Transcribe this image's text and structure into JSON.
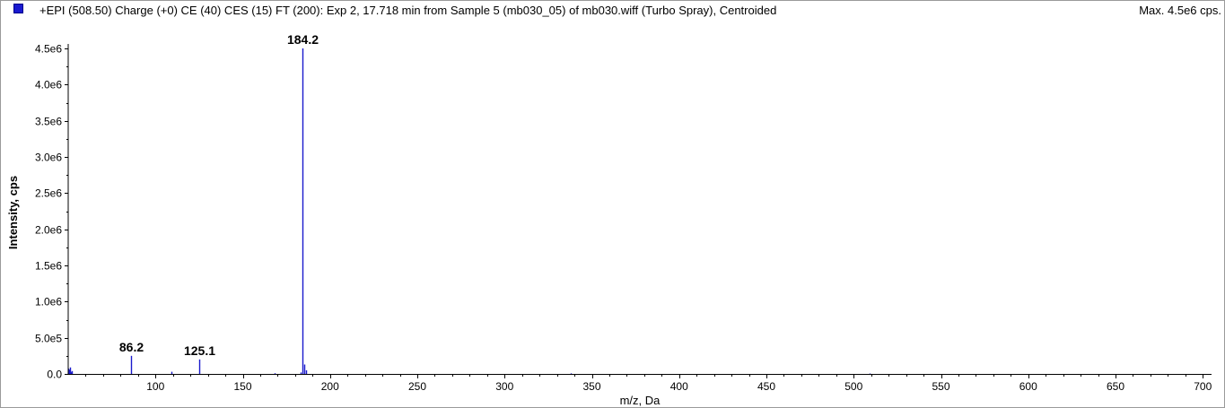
{
  "header": {
    "title": "+EPI (508.50) Charge (+0) CE (40) CES (15) FT (200): Exp 2, 17.718 min from Sample 5 (mb030_05) of mb030.wiff (Turbo Spray), Centroided",
    "max_label": "Max. 4.5e6 cps."
  },
  "colors": {
    "series": "#1a1acc",
    "axis": "#000000"
  },
  "chart_data": {
    "type": "bar",
    "subtype": "mass-spectrum-stick",
    "xlabel": "m/z, Da",
    "ylabel": "Intensity, cps",
    "xlim": [
      50,
      705
    ],
    "ylim": [
      0,
      4600000.0
    ],
    "x_ticks": [
      100,
      150,
      200,
      250,
      300,
      350,
      400,
      450,
      500,
      550,
      600,
      650,
      700
    ],
    "x_tick_labels": [
      "100",
      "150",
      "200",
      "250",
      "300",
      "350",
      "400",
      "450",
      "500",
      "550",
      "600",
      "650",
      "700"
    ],
    "y_ticks": [
      0,
      500000,
      1000000,
      1500000,
      2000000,
      2500000,
      3000000,
      3500000,
      4000000,
      4500000
    ],
    "y_tick_labels": [
      "0.0",
      "5.0e5",
      "1.0e6",
      "1.5e6",
      "2.0e6",
      "2.5e6",
      "3.0e6",
      "3.5e6",
      "4.0e6",
      "4.5e6"
    ],
    "grid": false,
    "peaks": [
      {
        "mz": 51.0,
        "intensity": 90000
      },
      {
        "mz": 52.0,
        "intensity": 40000
      },
      {
        "mz": 86.2,
        "intensity": 250000,
        "label": "86.2"
      },
      {
        "mz": 109.0,
        "intensity": 30000
      },
      {
        "mz": 125.1,
        "intensity": 200000,
        "label": "125.1"
      },
      {
        "mz": 184.2,
        "intensity": 4500000,
        "label": "184.2"
      },
      {
        "mz": 185.2,
        "intensity": 130000
      },
      {
        "mz": 186.2,
        "intensity": 50000
      },
      {
        "mz": 183.2,
        "intensity": 20000
      },
      {
        "mz": 168.0,
        "intensity": 10000
      },
      {
        "mz": 338.0,
        "intensity": 8000
      },
      {
        "mz": 509.0,
        "intensity": 6000
      }
    ]
  }
}
